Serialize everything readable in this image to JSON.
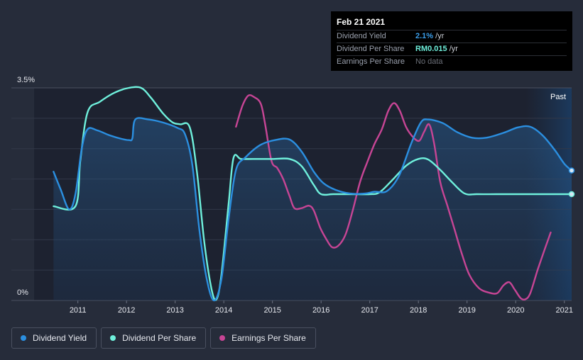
{
  "tooltip": {
    "date": "Feb 21 2021",
    "rows": [
      {
        "label": "Dividend Yield",
        "value": "2.1%",
        "unit": " /yr",
        "color": "#3b9eea"
      },
      {
        "label": "Dividend Per Share",
        "value": "RM0.015",
        "unit": " /yr",
        "color": "#6ff0dc"
      },
      {
        "label": "Earnings Per Share",
        "value": "No data",
        "unit": "",
        "color": "#6b6f78"
      }
    ]
  },
  "past_label": "Past",
  "legend": [
    {
      "label": "Dividend Yield",
      "color": "#2b8fe0"
    },
    {
      "label": "Dividend Per Share",
      "color": "#6ff0dc"
    },
    {
      "label": "Earnings Per Share",
      "color": "#c74595"
    }
  ],
  "chart_data": {
    "type": "line",
    "title": "",
    "y_tick_labels": [
      "3.5%",
      "0%"
    ],
    "ylim": [
      0,
      3.5
    ],
    "xlim": [
      2010.1,
      2021.15
    ],
    "x_tick_labels": [
      "2011",
      "2012",
      "2013",
      "2014",
      "2015",
      "2016",
      "2017",
      "2018",
      "2019",
      "2020",
      "2021"
    ],
    "x_ticks": [
      2011,
      2012,
      2013,
      2014,
      2015,
      2016,
      2017,
      2018,
      2019,
      2020,
      2021
    ],
    "past_start": 2020.2,
    "grid": true,
    "series": [
      {
        "name": "Dividend Yield",
        "color": "#2b8fe0",
        "area": true,
        "end_marker": true,
        "points": [
          [
            2010.5,
            2.12
          ],
          [
            2010.65,
            1.82
          ],
          [
            2010.82,
            1.5
          ],
          [
            2010.95,
            1.75
          ],
          [
            2011.08,
            2.5
          ],
          [
            2011.2,
            2.82
          ],
          [
            2011.4,
            2.8
          ],
          [
            2011.65,
            2.72
          ],
          [
            2011.9,
            2.66
          ],
          [
            2012.05,
            2.64
          ],
          [
            2012.12,
            2.67
          ],
          [
            2012.18,
            2.98
          ],
          [
            2012.45,
            2.98
          ],
          [
            2012.75,
            2.93
          ],
          [
            2013.05,
            2.84
          ],
          [
            2013.2,
            2.74
          ],
          [
            2013.35,
            2.25
          ],
          [
            2013.5,
            1.15
          ],
          [
            2013.65,
            0.35
          ],
          [
            2013.8,
            0.0
          ],
          [
            2013.95,
            0.35
          ],
          [
            2014.1,
            1.35
          ],
          [
            2014.25,
            2.15
          ],
          [
            2014.45,
            2.36
          ],
          [
            2014.75,
            2.56
          ],
          [
            2015.05,
            2.64
          ],
          [
            2015.35,
            2.65
          ],
          [
            2015.6,
            2.45
          ],
          [
            2015.85,
            2.12
          ],
          [
            2016.05,
            1.93
          ],
          [
            2016.3,
            1.82
          ],
          [
            2016.6,
            1.76
          ],
          [
            2016.9,
            1.76
          ],
          [
            2017.1,
            1.79
          ],
          [
            2017.35,
            1.8
          ],
          [
            2017.6,
            2.05
          ],
          [
            2017.85,
            2.58
          ],
          [
            2018.05,
            2.93
          ],
          [
            2018.2,
            2.98
          ],
          [
            2018.5,
            2.92
          ],
          [
            2018.8,
            2.77
          ],
          [
            2019.1,
            2.68
          ],
          [
            2019.4,
            2.68
          ],
          [
            2019.75,
            2.76
          ],
          [
            2020.05,
            2.85
          ],
          [
            2020.3,
            2.86
          ],
          [
            2020.55,
            2.72
          ],
          [
            2020.8,
            2.48
          ],
          [
            2021.0,
            2.25
          ],
          [
            2021.15,
            2.14
          ]
        ]
      },
      {
        "name": "Dividend Per Share",
        "color": "#6ff0dc",
        "area": false,
        "end_marker": true,
        "points": [
          [
            2010.5,
            1.55
          ],
          [
            2010.95,
            1.55
          ],
          [
            2011.05,
            2.3
          ],
          [
            2011.2,
            3.1
          ],
          [
            2011.45,
            3.27
          ],
          [
            2011.75,
            3.42
          ],
          [
            2012.05,
            3.5
          ],
          [
            2012.3,
            3.5
          ],
          [
            2012.5,
            3.34
          ],
          [
            2012.75,
            3.08
          ],
          [
            2012.95,
            2.93
          ],
          [
            2013.1,
            2.9
          ],
          [
            2013.3,
            2.85
          ],
          [
            2013.45,
            2.1
          ],
          [
            2013.6,
            0.95
          ],
          [
            2013.75,
            0.18
          ],
          [
            2013.85,
            0.02
          ],
          [
            2013.95,
            0.42
          ],
          [
            2014.1,
            1.6
          ],
          [
            2014.2,
            2.35
          ],
          [
            2014.35,
            2.33
          ],
          [
            2014.6,
            2.33
          ],
          [
            2015.0,
            2.33
          ],
          [
            2015.35,
            2.33
          ],
          [
            2015.6,
            2.21
          ],
          [
            2015.85,
            1.9
          ],
          [
            2016.0,
            1.75
          ],
          [
            2016.25,
            1.75
          ],
          [
            2016.6,
            1.75
          ],
          [
            2017.0,
            1.75
          ],
          [
            2017.2,
            1.78
          ],
          [
            2017.45,
            1.97
          ],
          [
            2017.75,
            2.22
          ],
          [
            2018.0,
            2.33
          ],
          [
            2018.2,
            2.32
          ],
          [
            2018.45,
            2.15
          ],
          [
            2018.7,
            1.94
          ],
          [
            2018.95,
            1.76
          ],
          [
            2019.2,
            1.75
          ],
          [
            2019.6,
            1.75
          ],
          [
            2020.0,
            1.75
          ],
          [
            2020.4,
            1.75
          ],
          [
            2020.8,
            1.75
          ],
          [
            2021.15,
            1.75
          ]
        ]
      },
      {
        "name": "Earnings Per Share",
        "color": "#c74595",
        "area": false,
        "end_marker": false,
        "points": [
          [
            2014.25,
            2.86
          ],
          [
            2014.38,
            3.2
          ],
          [
            2014.5,
            3.37
          ],
          [
            2014.62,
            3.35
          ],
          [
            2014.76,
            3.24
          ],
          [
            2014.85,
            2.9
          ],
          [
            2014.98,
            2.3
          ],
          [
            2015.1,
            2.18
          ],
          [
            2015.22,
            2.0
          ],
          [
            2015.35,
            1.72
          ],
          [
            2015.45,
            1.52
          ],
          [
            2015.6,
            1.52
          ],
          [
            2015.75,
            1.56
          ],
          [
            2015.85,
            1.48
          ],
          [
            2015.98,
            1.2
          ],
          [
            2016.1,
            1.02
          ],
          [
            2016.22,
            0.88
          ],
          [
            2016.35,
            0.9
          ],
          [
            2016.5,
            1.08
          ],
          [
            2016.65,
            1.48
          ],
          [
            2016.8,
            1.95
          ],
          [
            2016.95,
            2.28
          ],
          [
            2017.1,
            2.58
          ],
          [
            2017.25,
            2.82
          ],
          [
            2017.38,
            3.12
          ],
          [
            2017.5,
            3.25
          ],
          [
            2017.62,
            3.12
          ],
          [
            2017.75,
            2.85
          ],
          [
            2017.9,
            2.68
          ],
          [
            2018.02,
            2.63
          ],
          [
            2018.12,
            2.78
          ],
          [
            2018.22,
            2.9
          ],
          [
            2018.32,
            2.6
          ],
          [
            2018.45,
            1.95
          ],
          [
            2018.6,
            1.55
          ],
          [
            2018.75,
            1.15
          ],
          [
            2018.9,
            0.75
          ],
          [
            2019.05,
            0.42
          ],
          [
            2019.25,
            0.2
          ],
          [
            2019.45,
            0.13
          ],
          [
            2019.62,
            0.12
          ],
          [
            2019.75,
            0.25
          ],
          [
            2019.87,
            0.3
          ],
          [
            2019.98,
            0.18
          ],
          [
            2020.1,
            0.04
          ],
          [
            2020.2,
            0.02
          ],
          [
            2020.3,
            0.12
          ],
          [
            2020.45,
            0.5
          ],
          [
            2020.6,
            0.85
          ],
          [
            2020.72,
            1.12
          ]
        ]
      }
    ]
  }
}
